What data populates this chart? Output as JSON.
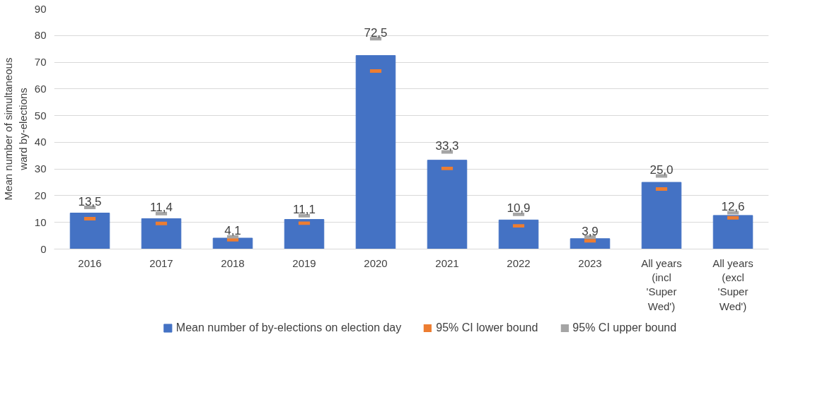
{
  "chart_data": {
    "type": "bar",
    "ylabel": "Mean number of simultaneous ward by-elections",
    "categories": [
      "2016",
      "2017",
      "2018",
      "2019",
      "2020",
      "2021",
      "2022",
      "2023",
      "All years (incl 'Super Wed')",
      "All years (excl 'Super Wed')"
    ],
    "series": [
      {
        "name": "Mean number of by-elections on election day",
        "color": "#4472c4",
        "values": [
          13.5,
          11.4,
          4.1,
          11.1,
          72.5,
          33.3,
          10.9,
          3.9,
          25.0,
          12.6
        ],
        "value_labels": [
          "13,5",
          "11,4",
          "4,1",
          "11,1",
          "72,5",
          "33,3",
          "10,9",
          "3,9",
          "25,0",
          "12,6"
        ]
      },
      {
        "name": "95% CI lower bound",
        "type": "scatter",
        "color": "#ed7d31",
        "values": [
          11.4,
          9.6,
          3.5,
          9.7,
          66.7,
          30.2,
          8.7,
          3.1,
          22.5,
          11.7
        ]
      },
      {
        "name": "95% CI upper bound",
        "type": "scatter",
        "color": "#a5a5a5",
        "values": [
          15.6,
          13.3,
          4.6,
          12.5,
          78.8,
          36.4,
          13.0,
          4.5,
          27.4,
          13.6
        ]
      }
    ],
    "ylim": [
      0,
      90
    ],
    "yticks": [
      0,
      10,
      20,
      30,
      40,
      50,
      60,
      70,
      80,
      90
    ],
    "grid": "y",
    "legend": "bottom"
  }
}
